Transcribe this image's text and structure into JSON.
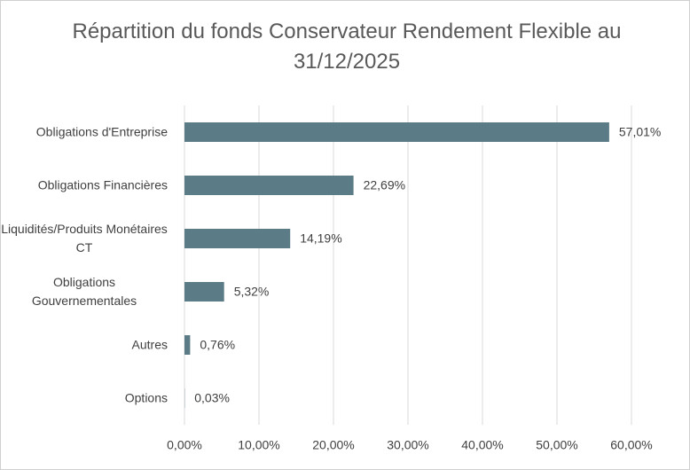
{
  "chart_data": {
    "type": "bar",
    "orientation": "horizontal",
    "title": "Répartition du fonds Conservateur Rendement Flexible au 31/12/2025",
    "categories": [
      "Obligations d'Entreprise",
      "Obligations Financières",
      "Liquidités/Produits Monétaires CT",
      "Obligations Gouvernementales",
      "Autres",
      "Options"
    ],
    "values": [
      57.01,
      22.69,
      14.19,
      5.32,
      0.76,
      0.03
    ],
    "value_labels": [
      "57,01%",
      "22,69%",
      "14,19%",
      "5,32%",
      "0,76%",
      "0,03%"
    ],
    "color": "#5b7b87",
    "xlim": [
      0,
      60
    ],
    "xticks": [
      {
        "value": 0,
        "label": "0,00%"
      },
      {
        "value": 10,
        "label": "10,00%"
      },
      {
        "value": 20,
        "label": "20,00%"
      },
      {
        "value": 30,
        "label": "30,00%"
      },
      {
        "value": 40,
        "label": "40,00%"
      },
      {
        "value": 50,
        "label": "50,00%"
      },
      {
        "value": 60,
        "label": "60,00%"
      }
    ],
    "grid": true
  }
}
